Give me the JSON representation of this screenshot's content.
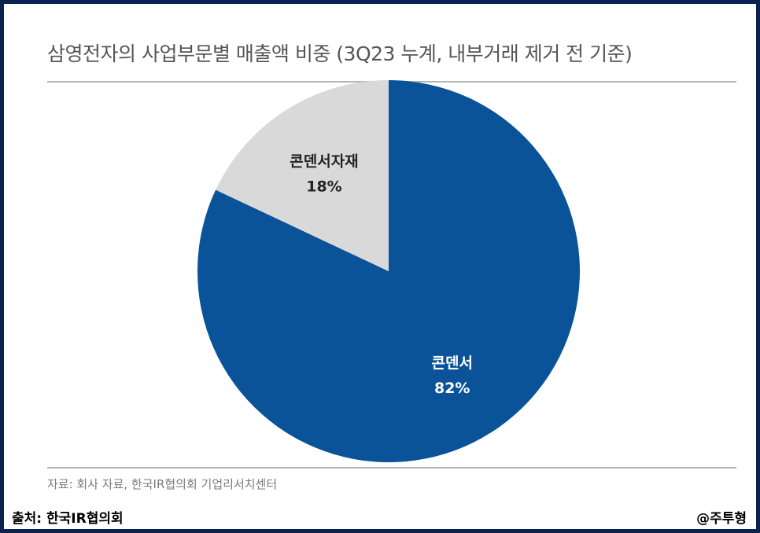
{
  "chart_data": {
    "type": "pie",
    "title": "삼영전자의 사업부문별 매출액 비중 (3Q23 누계, 내부거래 제거 전 기준)",
    "slices": [
      {
        "label": "콘덴서",
        "value": 82,
        "value_label": "82%",
        "color": "#0a5399",
        "label_color": "#ffffff"
      },
      {
        "label": "콘덴서자재",
        "value": 18,
        "value_label": "18%",
        "color": "#d9d9d9",
        "label_color": "#222222"
      }
    ],
    "start": "top",
    "direction": "clockwise"
  },
  "source_note": "자료: 회사 자료, 한국IR협의회 기업리서치센터",
  "footer": {
    "left": "출처: 한국IR협의회",
    "right": "@주투형"
  },
  "colors": {
    "border": "#0b2350",
    "primary": "#0a5399",
    "secondary": "#d9d9d9"
  }
}
